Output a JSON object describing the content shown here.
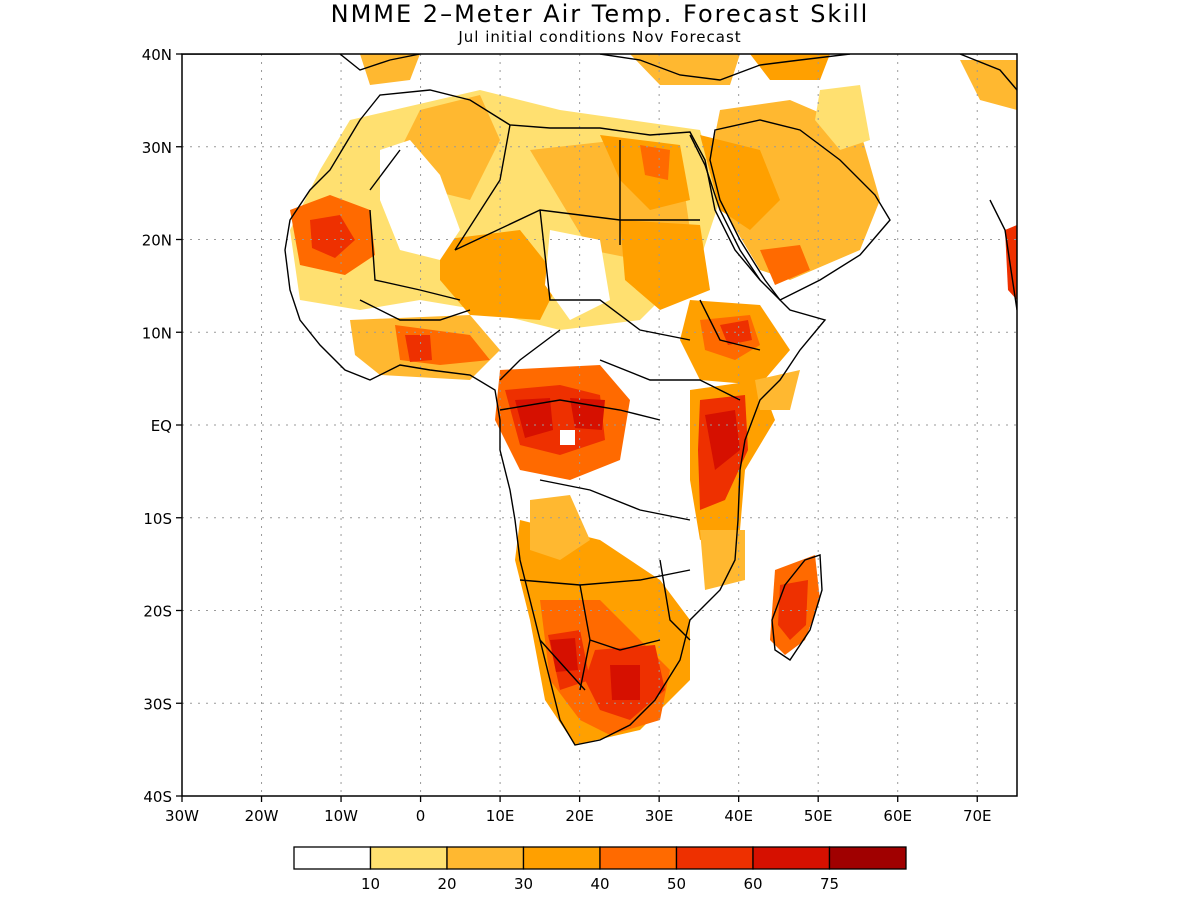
{
  "title": "NMME 2–Meter Air Temp. Forecast Skill",
  "subtitle": "Jul initial conditions   Nov Forecast",
  "map": {
    "lon_range": [
      -30,
      75
    ],
    "lat_range": [
      -40,
      40
    ],
    "lon_ticks": [
      "30W",
      "20W",
      "10W",
      "0",
      "10E",
      "20E",
      "30E",
      "40E",
      "50E",
      "60E",
      "70E"
    ],
    "lat_ticks": [
      "40N",
      "30N",
      "20N",
      "10N",
      "EQ",
      "10S",
      "20S",
      "30S",
      "40S"
    ],
    "grid": "dotted"
  },
  "legend": {
    "labels": [
      "10",
      "20",
      "30",
      "40",
      "50",
      "60",
      "75"
    ],
    "colors": [
      "#ffffff",
      "#ffe070",
      "#ffb830",
      "#ffa000",
      "#ff6a00",
      "#ee3000",
      "#d61000",
      "#a00000"
    ]
  },
  "colors": {
    "outline": "#000000",
    "grid": "#9a9a9a"
  }
}
